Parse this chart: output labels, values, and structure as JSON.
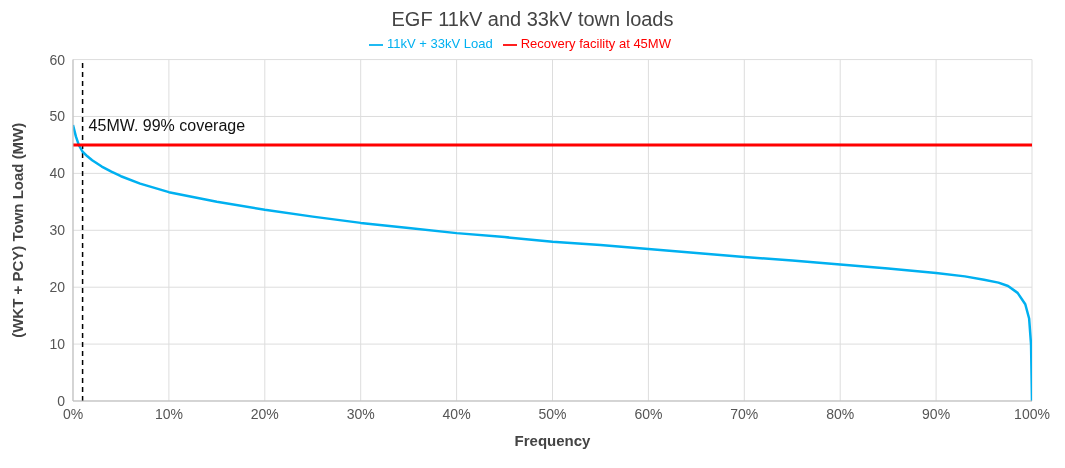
{
  "chart_data": {
    "type": "line",
    "title": "EGF 11kV and 33kV town loads",
    "xlabel": "Frequency",
    "ylabel": "(WKT + PCY) Town Load (MW)",
    "series": [
      {
        "name": "11kV + 33kV Load",
        "color": "#00b0f0",
        "x": [
          0,
          0.3,
          0.6,
          1,
          1.5,
          2,
          3,
          4,
          5,
          7,
          10,
          15,
          20,
          25,
          30,
          35,
          40,
          45,
          50,
          55,
          60,
          65,
          70,
          75,
          80,
          85,
          90,
          93,
          95,
          96.5,
          97.5,
          98.5,
          99.3,
          99.7,
          99.9,
          100
        ],
        "values": [
          48.5,
          46.5,
          45,
          43.8,
          43,
          42.3,
          41.2,
          40.3,
          39.5,
          38.2,
          36.7,
          35,
          33.6,
          32.4,
          31.3,
          30.4,
          29.5,
          28.8,
          28,
          27.4,
          26.7,
          26,
          25.3,
          24.7,
          24,
          23.3,
          22.5,
          21.9,
          21.3,
          20.8,
          20.2,
          19,
          17,
          14.5,
          10,
          0
        ]
      },
      {
        "name": "Recovery facility at 45MW",
        "color": "#ff0000",
        "x": [
          0,
          100
        ],
        "values": [
          45,
          45
        ]
      }
    ],
    "xlim": [
      0,
      100
    ],
    "xticks": [
      {
        "value": 0,
        "label": "0%"
      },
      {
        "value": 10,
        "label": "10%"
      },
      {
        "value": 20,
        "label": "20%"
      },
      {
        "value": 30,
        "label": "30%"
      },
      {
        "value": 40,
        "label": "40%"
      },
      {
        "value": 50,
        "label": "50%"
      },
      {
        "value": 60,
        "label": "60%"
      },
      {
        "value": 70,
        "label": "70%"
      },
      {
        "value": 80,
        "label": "80%"
      },
      {
        "value": 90,
        "label": "90%"
      },
      {
        "value": 100,
        "label": "100%"
      }
    ],
    "ylim": [
      0,
      60
    ],
    "yticks": [
      0,
      10,
      20,
      30,
      40,
      50,
      60
    ],
    "ref_lines": [
      {
        "axis": "x",
        "value": 1,
        "label": "45MW. 99% coverage",
        "color": "#000000",
        "line_style": "dashed"
      }
    ],
    "grid": true,
    "legend": "top",
    "marker": "none",
    "line_style": "solid"
  }
}
